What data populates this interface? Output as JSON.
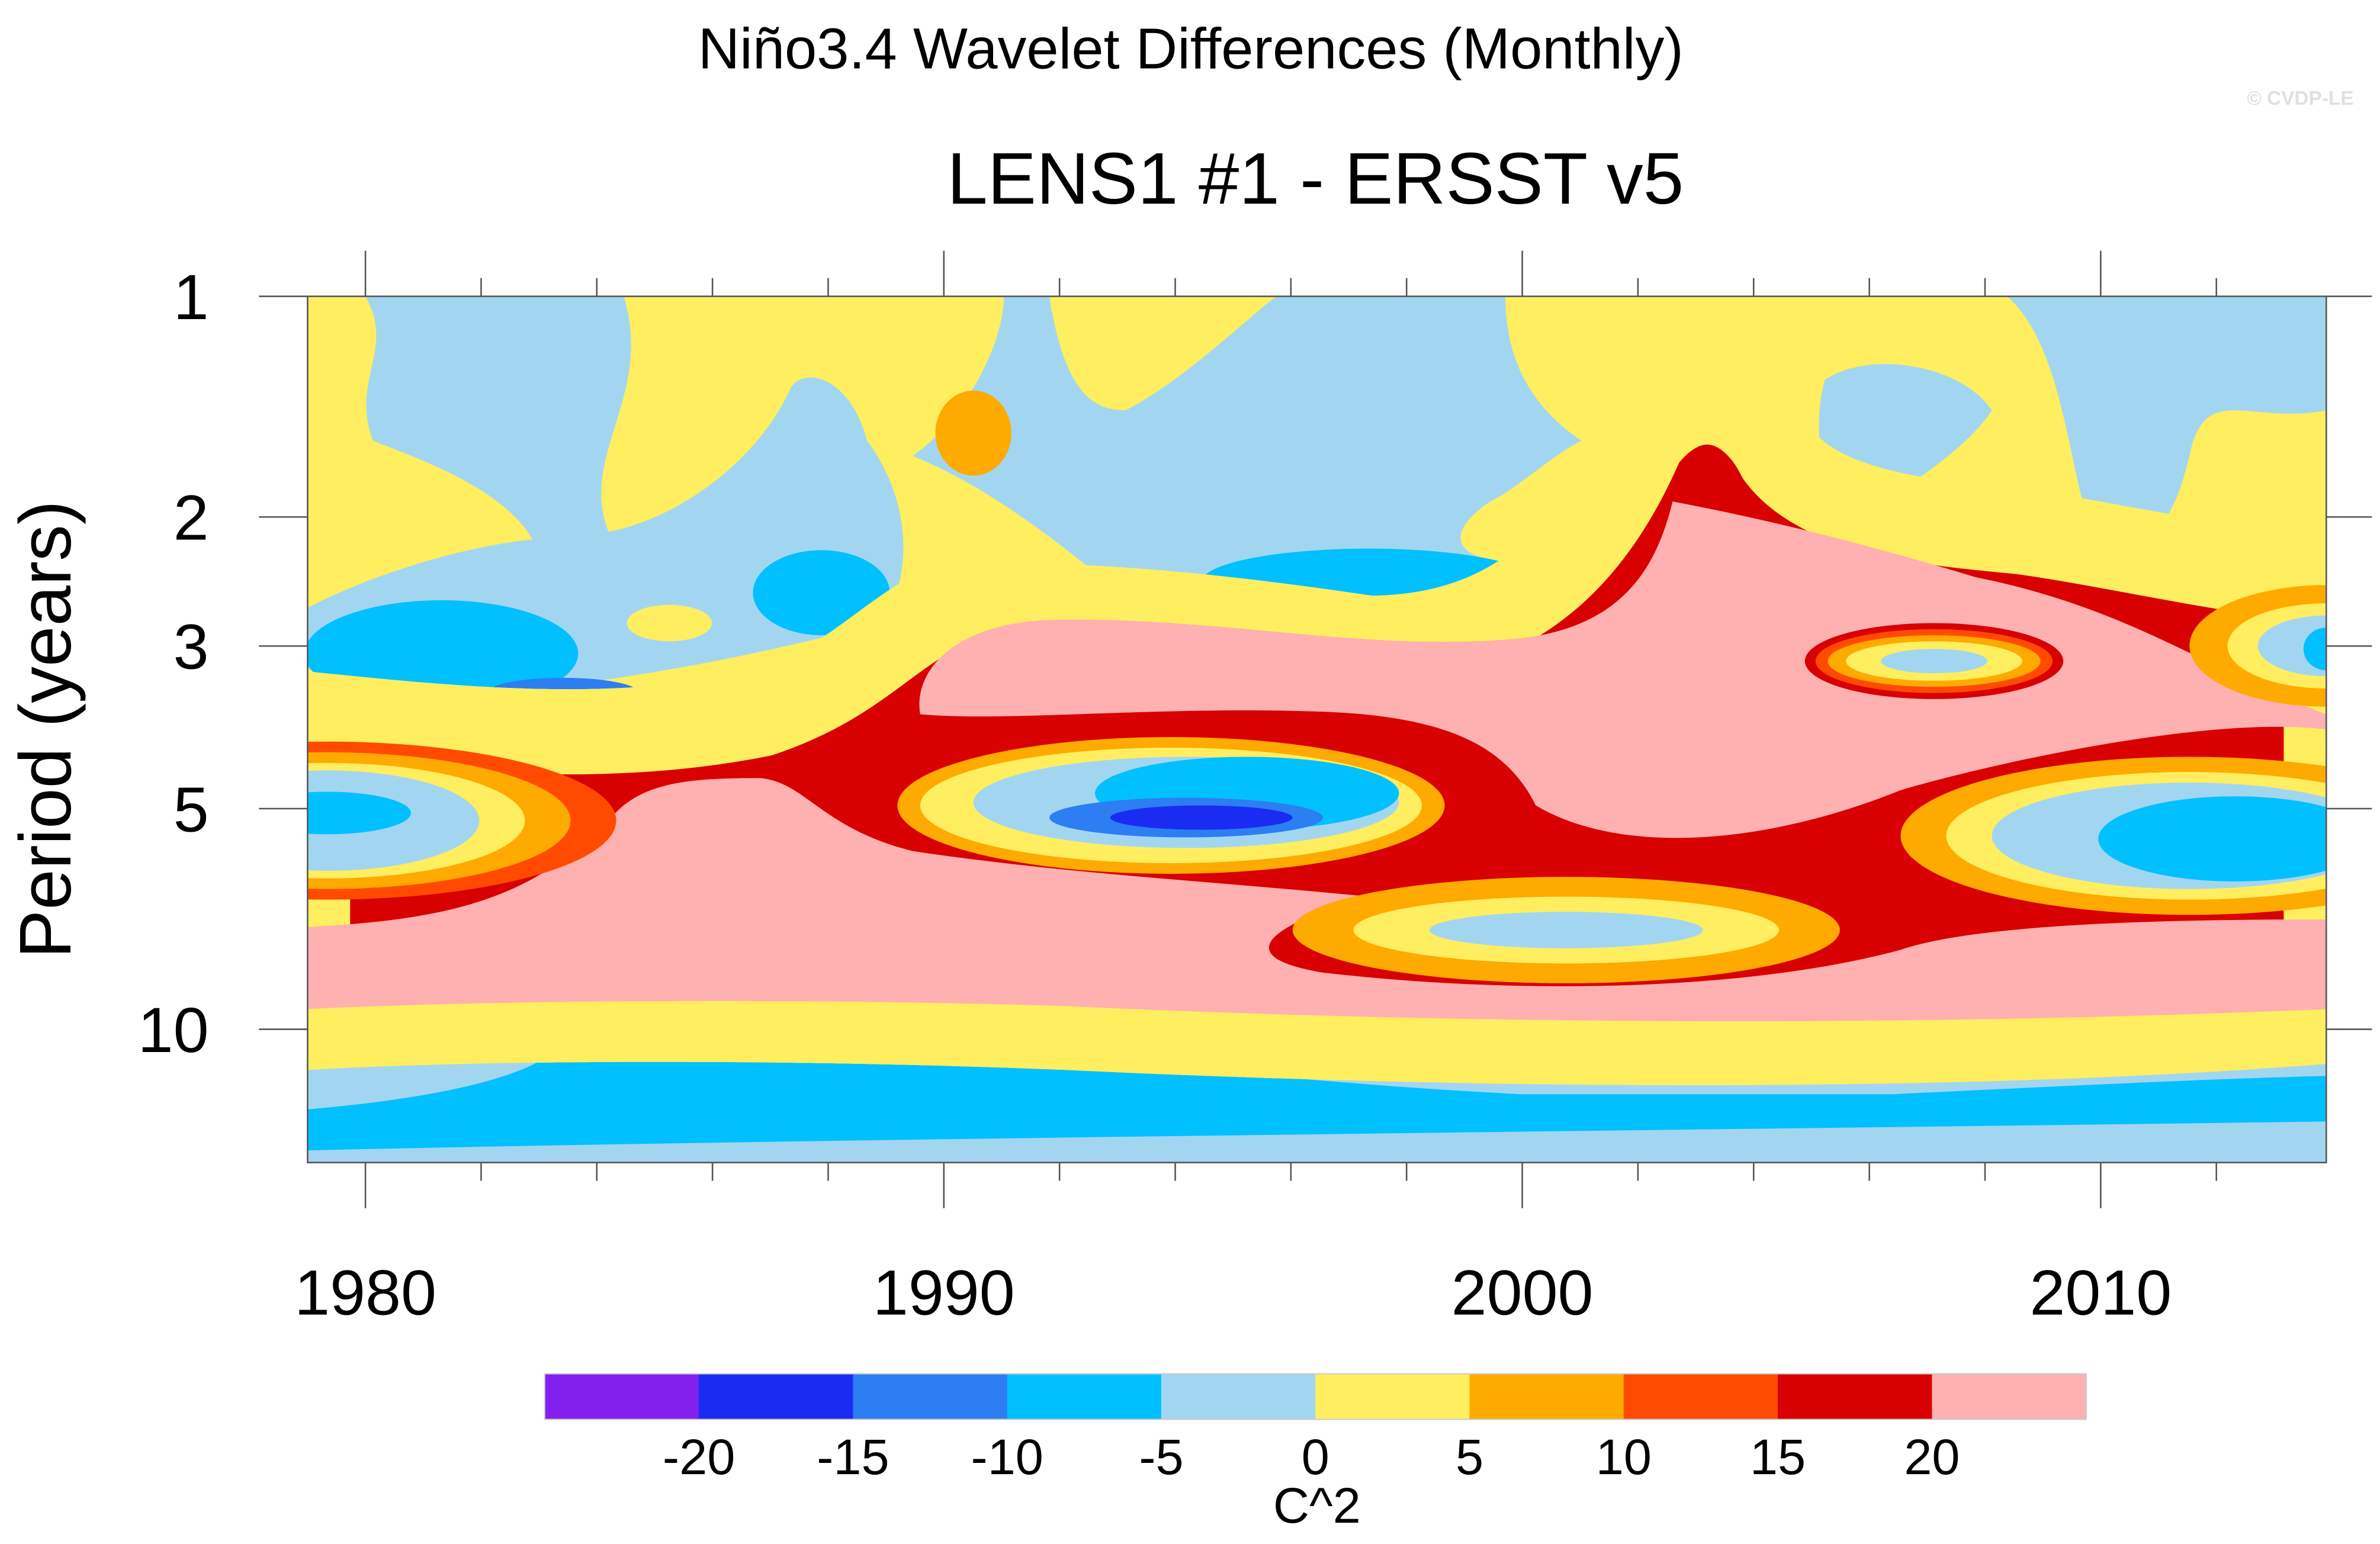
{
  "chart_data": {
    "type": "heatmap",
    "title": "Niño3.4 Wavelet Differences (Monthly)",
    "subtitle": "LENS1 #1 - ERSST v5",
    "watermark": "© CVDP-LE",
    "xlabel": "",
    "ylabel": "Period (years)",
    "xlim": [
      1979,
      2013.9
    ],
    "ylim": [
      1,
      15.2
    ],
    "yscale": "log",
    "xticks": [
      1980,
      1990,
      2000,
      2010
    ],
    "xtick_labels": [
      "1980",
      "1990",
      "2000",
      "2010"
    ],
    "yticks": [
      1,
      2,
      3,
      5,
      10
    ],
    "ytick_labels": [
      "1",
      "2",
      "3",
      "5",
      "10"
    ],
    "colorbar": {
      "label": "C^2",
      "levels": [
        "-20",
        "-15",
        "-10",
        "-5",
        "0",
        "5",
        "10",
        "15",
        "20"
      ],
      "colors": [
        "#8320ee",
        "#1a2cf2",
        "#2c7ef2",
        "#00c0ff",
        "#a2d6f0",
        "#ffee60",
        "#ffaa00",
        "#ff4a00",
        "#d80000",
        "#ffb0b0"
      ]
    }
  }
}
